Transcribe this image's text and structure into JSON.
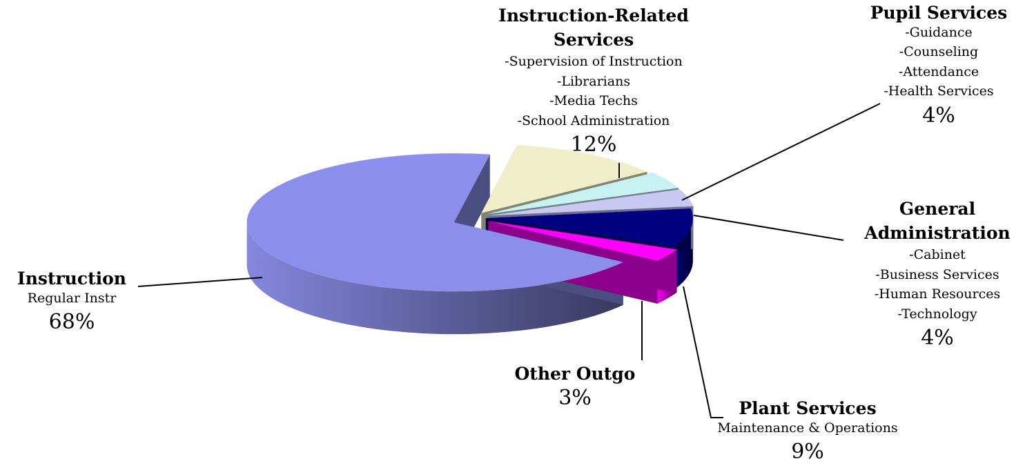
{
  "chart_data": {
    "type": "pie",
    "categories": [
      "Instruction",
      "Instruction-Related Services",
      "Pupil Services",
      "General Administration",
      "Plant Services",
      "Other Outgo"
    ],
    "details": [
      [
        "Regular Instr"
      ],
      [
        "-Supervision of Instruction",
        "-Librarians",
        "-Media Techs",
        "-School Administration"
      ],
      [
        "-Guidance",
        "-Counseling",
        "-Attendance",
        "-Health Services"
      ],
      [
        "-Cabinet",
        "-Business Services",
        "-Human Resources",
        "-Technology"
      ],
      [
        "Maintenance & Operations"
      ],
      []
    ],
    "values": [
      68,
      12,
      4,
      4,
      9,
      3
    ],
    "value_labels": [
      "68%",
      "12%",
      "4%",
      "4%",
      "9%",
      "3%"
    ],
    "colors": [
      "#8b8eea",
      "#f0eec8",
      "#c8f2f2",
      "#c8c8f2",
      "#000080",
      "#ff00ff"
    ]
  }
}
